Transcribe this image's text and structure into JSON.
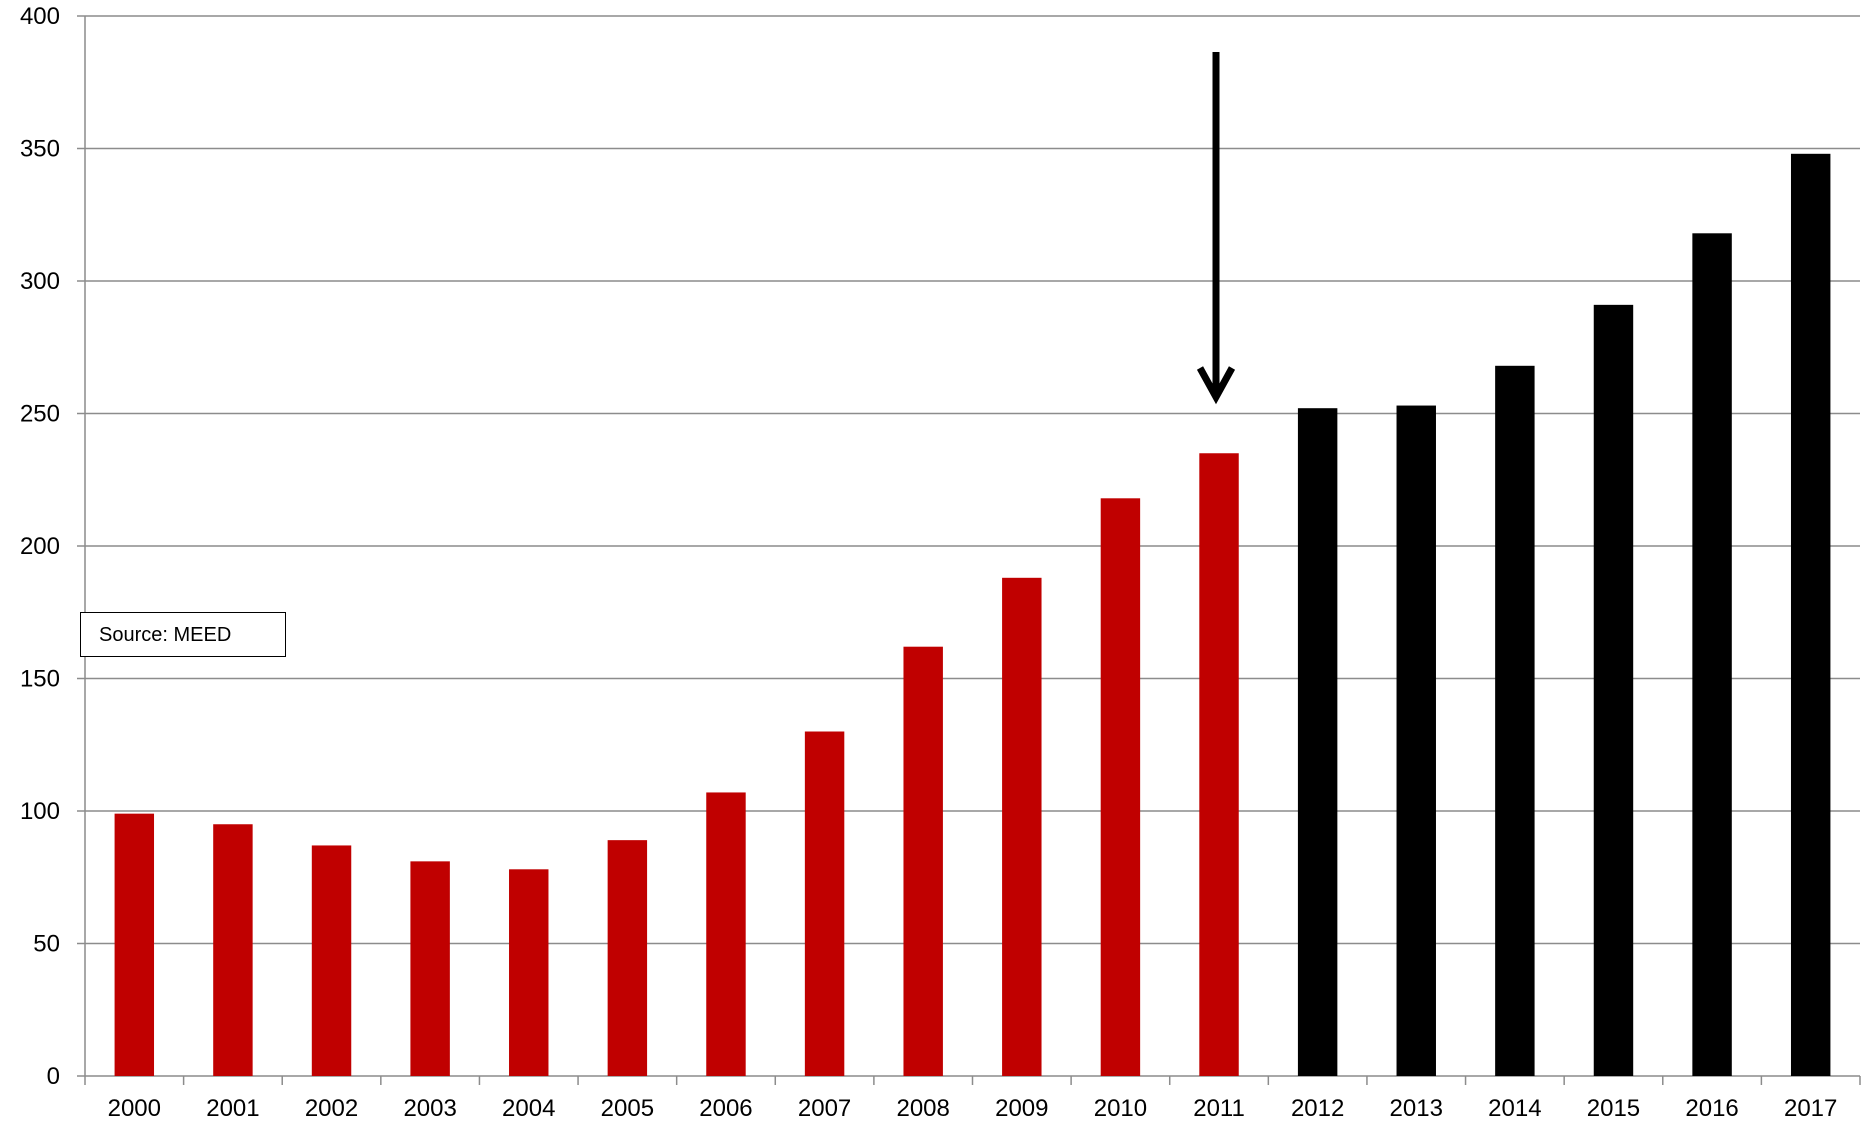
{
  "chart_data": {
    "type": "bar",
    "title": "",
    "xlabel": "",
    "ylabel": "",
    "ylim": [
      0,
      400
    ],
    "yticks": [
      0,
      50,
      100,
      150,
      200,
      250,
      300,
      350,
      400
    ],
    "grid": true,
    "legend": "none",
    "categories": [
      "2000",
      "2001",
      "2002",
      "2003",
      "2004",
      "2005",
      "2006",
      "2007",
      "2008",
      "2009",
      "2010",
      "2011",
      "2012",
      "2013",
      "2014",
      "2015",
      "2016",
      "2017"
    ],
    "values": [
      99,
      95,
      87,
      81,
      78,
      89,
      107,
      130,
      162,
      188,
      218,
      235,
      252,
      253,
      268,
      291,
      318,
      348
    ],
    "bar_colors": [
      "#c00000",
      "#c00000",
      "#c00000",
      "#c00000",
      "#c00000",
      "#c00000",
      "#c00000",
      "#c00000",
      "#c00000",
      "#c00000",
      "#c00000",
      "#c00000",
      "#000000",
      "#000000",
      "#000000",
      "#000000",
      "#000000",
      "#000000"
    ],
    "annotations": {
      "source_text": "Source: MEED",
      "arrow_category": "2011"
    }
  }
}
